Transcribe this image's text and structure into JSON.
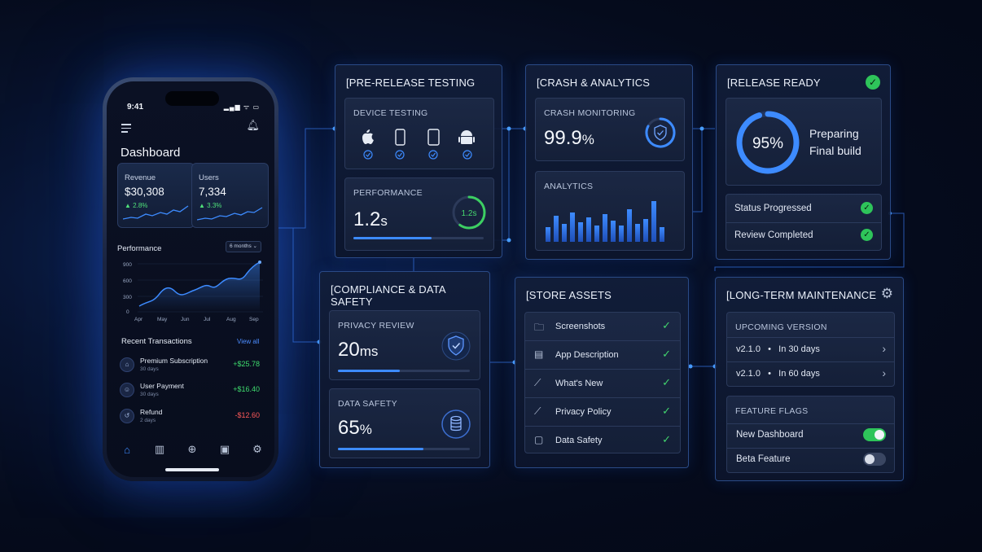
{
  "phone": {
    "time": "9:41",
    "status_icons": "▂▄▆ ᯤ ▭",
    "title": "Dashboard",
    "metrics": [
      {
        "label": "Revenue",
        "value": "$30,308",
        "change": "▲ 2.8%"
      },
      {
        "label": "Users",
        "value": "7,334",
        "change": "▲ 3.3%"
      }
    ],
    "performance": {
      "title": "Performance",
      "range": "6 months ⌄",
      "y_ticks": [
        "900",
        "600",
        "300",
        "0"
      ],
      "x_ticks": [
        "Apr",
        "May",
        "Jun",
        "Jul",
        "Aug",
        "Sep"
      ]
    },
    "transactions": {
      "title": "Recent Transactions",
      "view_all": "View all",
      "items": [
        {
          "name": "Premium Subscription",
          "sub": "30 days",
          "amount": "+$25.78",
          "type": "pos"
        },
        {
          "name": "User Payment",
          "sub": "30 days",
          "amount": "+$16.40",
          "type": "pos"
        },
        {
          "name": "Refund",
          "sub": "2 days",
          "amount": "-$12.60",
          "type": "neg"
        }
      ]
    }
  },
  "pre_release": {
    "title": "[PRE-RELEASE TESTING",
    "device_testing": {
      "label": "DEVICE TESTING",
      "devices": [
        "apple-icon",
        "phone-icon",
        "tablet-icon",
        "android-icon"
      ]
    },
    "performance": {
      "label": "PERFORMANCE",
      "value": "1.2",
      "unit": "s",
      "ring_label": "1.2s",
      "progress": 0.6
    }
  },
  "crash": {
    "title": "[CRASH & ANALYTICS",
    "monitoring": {
      "label": "CRASH MONITORING",
      "value": "99.9",
      "unit": "%"
    },
    "analytics": {
      "label": "ANALYTICS"
    }
  },
  "release": {
    "title": "[RELEASE READY",
    "percent": "95%",
    "progress": 0.95,
    "status_line1": "Preparing",
    "status_line2": "Final build",
    "items": [
      "Status Progressed",
      "Review Completed"
    ]
  },
  "compliance": {
    "title": "[COMPLIANCE & DATA SAFETY",
    "privacy": {
      "label": "PRIVACY REVIEW",
      "value": "20",
      "unit": "ms",
      "progress": 0.47
    },
    "safety": {
      "label": "DATA SAFETY",
      "value": "65",
      "unit": "%",
      "progress": 0.65
    }
  },
  "store": {
    "title": "[STORE ASSETS",
    "items": [
      "Screenshots",
      "App Description",
      "What's New",
      "Privacy Policy",
      "Data Safety"
    ]
  },
  "maintenance": {
    "title": "[LONG-TERM MAINTENANCE",
    "upcoming": {
      "label": "UPCOMING VERSION",
      "rows": [
        "v2.1.0   •   In 30 days",
        "v2.1.0   •   In 60 days"
      ]
    },
    "flags": {
      "label": "FEATURE FLAGS",
      "items": [
        {
          "name": "New Dashboard",
          "on": true
        },
        {
          "name": "Beta Feature",
          "on": false
        }
      ]
    }
  },
  "colors": {
    "accent": "#3d8bff",
    "success": "#2ec45a",
    "danger": "#ff5a5a"
  }
}
